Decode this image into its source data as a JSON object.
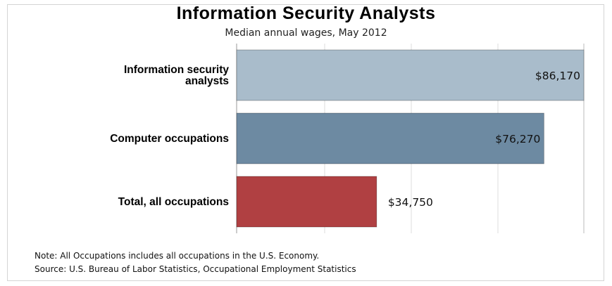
{
  "title": "Information Security Analysts",
  "subtitle": "Median annual wages, May 2012",
  "notes": {
    "note": "Note: All Occupations includes all occupations in the U.S. Economy.",
    "source": "Source: U.S. Bureau of Labor Statistics, Occupational Employment Statistics"
  },
  "colors": {
    "info_sec": "#a9bccb",
    "computer": "#6d8aa2",
    "total": "#b04042",
    "grid": "#dcdcdc"
  },
  "chart_data": {
    "type": "bar",
    "orientation": "horizontal",
    "title": "Information Security Analysts",
    "subtitle": "Median annual wages, May 2012",
    "categories": [
      "Information security analysts",
      "Computer occupations",
      "Total, all occupations"
    ],
    "category_lines": [
      [
        "Information security",
        "analysts"
      ],
      [
        "Computer occupations"
      ],
      [
        "Total, all occupations"
      ]
    ],
    "values": [
      86170,
      76270,
      34750
    ],
    "value_labels": [
      "$86,170",
      "$76,270",
      "$34,750"
    ],
    "bar_colors": [
      "#a9bccb",
      "#6d8aa2",
      "#b04042"
    ],
    "xlim": [
      0,
      86170
    ],
    "grid": true,
    "legend": "none"
  }
}
